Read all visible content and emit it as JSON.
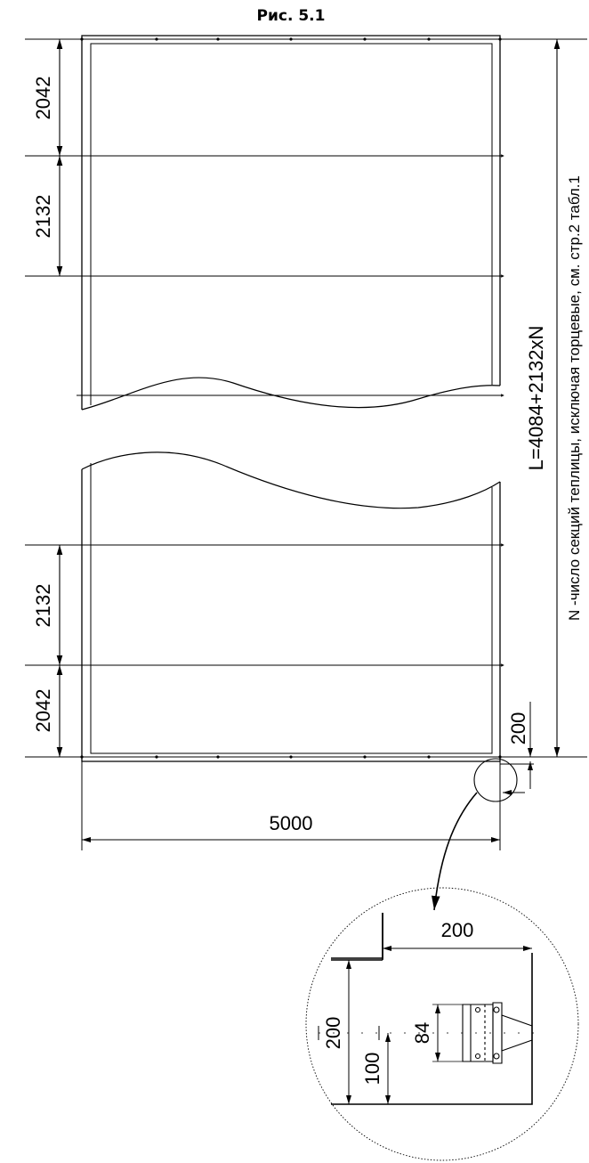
{
  "figure": {
    "title": "Рис. 5.1"
  },
  "dimensions": {
    "top_end_bay": "2042",
    "top_inner_bay": "2132",
    "bottom_inner_bay": "2132",
    "bottom_end_bay": "2042",
    "width": "5000",
    "offset": "200"
  },
  "formula": {
    "length": "L=4084+2132xN",
    "note": "N -число секций теплицы, исключая торцевые, см. стр.2 табл.1"
  },
  "detail": {
    "offset_x": "200",
    "height": "200",
    "center": "100",
    "bolt_spacing": "84"
  },
  "colors": {
    "line": "#000000",
    "background": "#ffffff"
  }
}
